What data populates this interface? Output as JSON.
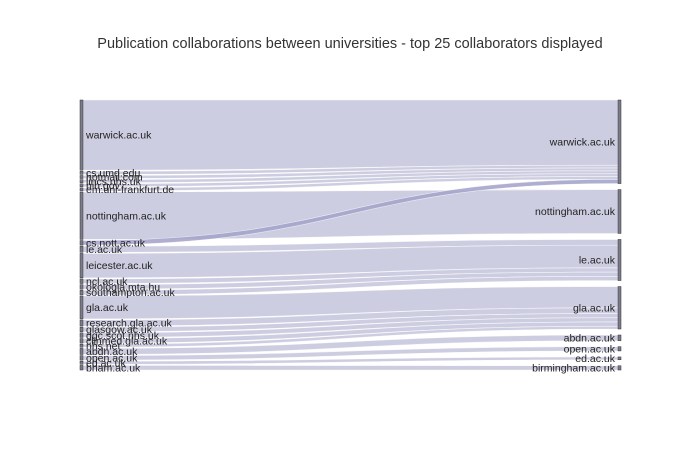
{
  "title": "Publication collaborations between universities - top 25 collaborators displayed",
  "colors": {
    "link": "#c9c9de",
    "link_highlight": "#a5a5cc",
    "node": "#7b7b8a",
    "text": "#222222"
  },
  "sources": [
    {
      "label": "warwick.ac.uk",
      "value": 46,
      "target": "warwick.ac.uk"
    },
    {
      "label": "cs.umd.edu",
      "value": 2,
      "target": "warwick.ac.uk"
    },
    {
      "label": "hotmail.com",
      "value": 2,
      "target": "warwick.ac.uk"
    },
    {
      "label": "lincs.nhs.uk",
      "value": 2,
      "target": "warwick.ac.uk"
    },
    {
      "label": "nih.gov",
      "value": 2,
      "target": "warwick.ac.uk"
    },
    {
      "label": "em.uni-frankfurt.de",
      "value": 2,
      "target": "warwick.ac.uk"
    },
    {
      "label": "nottingham.ac.uk",
      "value": 31,
      "target": "nottingham.ac.uk"
    },
    {
      "label": "cs.nott.ac.uk",
      "value": 3,
      "target": "warwick.ac.uk",
      "highlight": true
    },
    {
      "label": "le.ac.uk",
      "value": 4,
      "target": "le.ac.uk"
    },
    {
      "label": "leicester.ac.uk",
      "value": 16,
      "target": "le.ac.uk"
    },
    {
      "label": "ncl.ac.uk",
      "value": 3,
      "target": "le.ac.uk"
    },
    {
      "label": "okologia.mta.hu",
      "value": 3,
      "target": "le.ac.uk"
    },
    {
      "label": "southampton.ac.uk",
      "value": 3,
      "target": "le.ac.uk"
    },
    {
      "label": "gla.ac.uk",
      "value": 15,
      "target": "gla.ac.uk"
    },
    {
      "label": "research.gla.ac.uk",
      "value": 4,
      "target": "gla.ac.uk"
    },
    {
      "label": "glasgow.ac.uk",
      "value": 3,
      "target": "gla.ac.uk"
    },
    {
      "label": "ggc.scot.nhs.uk",
      "value": 3,
      "target": "gla.ac.uk"
    },
    {
      "label": "clinmed.gla.ac.uk",
      "value": 3,
      "target": "gla.ac.uk"
    },
    {
      "label": "nhs.net",
      "value": 2,
      "target": "gla.ac.uk"
    },
    {
      "label": "abdn.ac.uk",
      "value": 4,
      "target": "abdn.ac.uk"
    },
    {
      "label": "open.ac.uk",
      "value": 3,
      "target": "open.ac.uk"
    },
    {
      "label": "ed.ac.uk",
      "value": 2,
      "target": "ed.ac.uk"
    },
    {
      "label": "bham.ac.uk",
      "value": 3,
      "target": "birmingham.ac.uk"
    }
  ],
  "targets": [
    {
      "label": "warwick.ac.uk"
    },
    {
      "label": "nottingham.ac.uk"
    },
    {
      "label": "le.ac.uk"
    },
    {
      "label": "gla.ac.uk"
    },
    {
      "label": "abdn.ac.uk"
    },
    {
      "label": "open.ac.uk"
    },
    {
      "label": "ed.ac.uk"
    },
    {
      "label": "birmingham.ac.uk"
    }
  ]
}
